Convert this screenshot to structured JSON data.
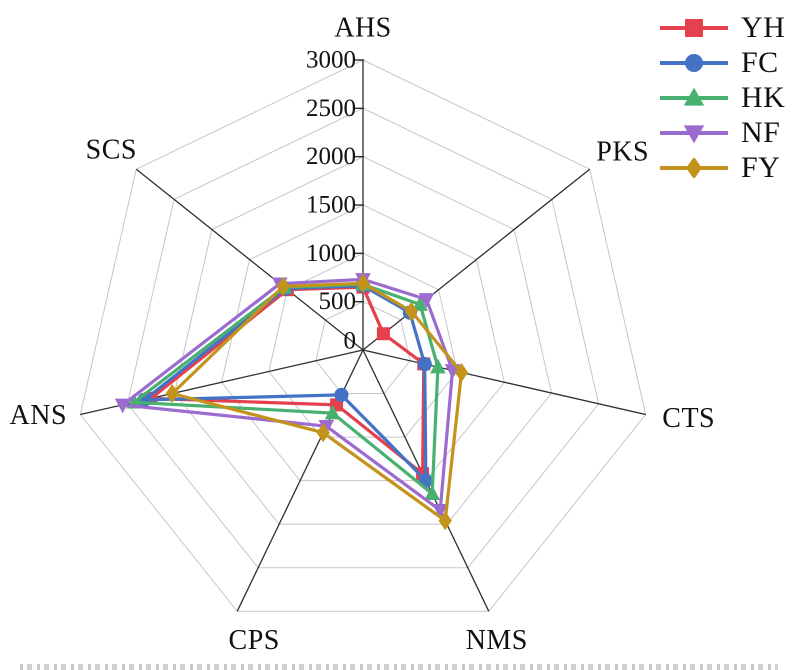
{
  "figure": {
    "background": "#ffffff",
    "grid_color": "#c6c6c6",
    "spoke_color": "#2e2e2e",
    "text_color": "#111111"
  },
  "chart_data": {
    "type": "radar",
    "categories": [
      "AHS",
      "PKS",
      "CTS",
      "NMS",
      "CPS",
      "ANS",
      "SCS"
    ],
    "axis": {
      "min": 0,
      "max": 3000,
      "tick_interval": 500,
      "tick_labels": [
        "0",
        "500",
        "1000",
        "1500",
        "2000",
        "2500",
        "3000"
      ]
    },
    "grid": true,
    "legend_position": "top-right",
    "series": [
      {
        "name": "YH",
        "marker": "square",
        "color": "#e4404d",
        "values": [
          650,
          270,
          645,
          1420,
          630,
          2250,
          1000
        ]
      },
      {
        "name": "FC",
        "marker": "circle",
        "color": "#4472c4",
        "values": [
          665,
          620,
          655,
          1500,
          515,
          2320,
          1020
        ]
      },
      {
        "name": "HK",
        "marker": "triangle-up",
        "color": "#48b170",
        "values": [
          680,
          755,
          795,
          1650,
          725,
          2430,
          1040
        ]
      },
      {
        "name": "NF",
        "marker": "triangle-down",
        "color": "#9c6bd0",
        "values": [
          730,
          840,
          950,
          1840,
          875,
          2550,
          1100
        ]
      },
      {
        "name": "FY",
        "marker": "diamond",
        "color": "#c3931c",
        "values": [
          690,
          640,
          1045,
          1960,
          950,
          2025,
          1055
        ]
      }
    ]
  }
}
